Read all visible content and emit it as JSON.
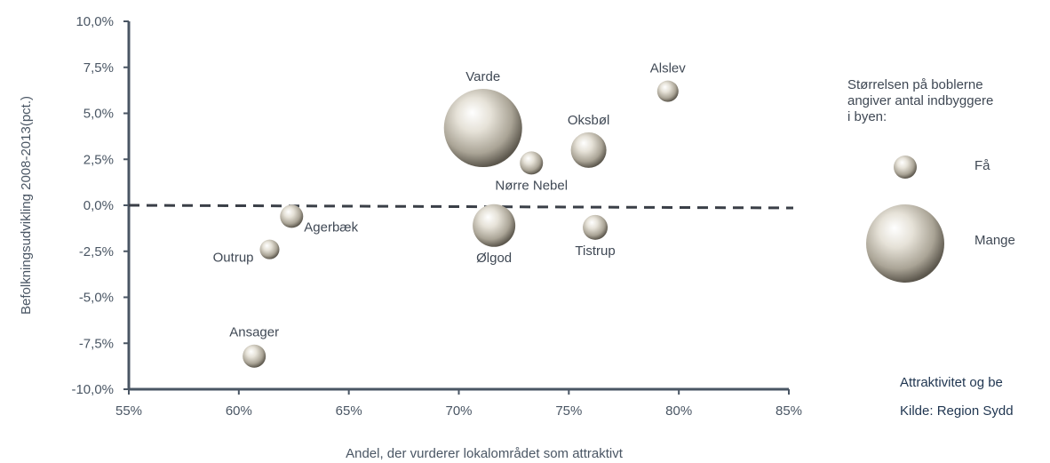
{
  "chart_data": {
    "type": "scatter",
    "xlabel": "Andel, der vurderer lokalområdet som attraktivt",
    "ylabel": "Befolkningsudvikling 2008-2013(pct.)",
    "xlim": [
      0.55,
      0.85
    ],
    "ylim": [
      -0.1,
      0.1
    ],
    "x_ticks": [
      {
        "value": 0.55,
        "label": "55%"
      },
      {
        "value": 0.6,
        "label": "60%"
      },
      {
        "value": 0.65,
        "label": "65%"
      },
      {
        "value": 0.7,
        "label": "70%"
      },
      {
        "value": 0.75,
        "label": "75%"
      },
      {
        "value": 0.8,
        "label": "80%"
      },
      {
        "value": 0.85,
        "label": "85%"
      }
    ],
    "y_ticks": [
      {
        "value": 0.1,
        "label": "10,0%"
      },
      {
        "value": 0.075,
        "label": "7,5%"
      },
      {
        "value": 0.05,
        "label": "5,0%"
      },
      {
        "value": 0.025,
        "label": "2,5%"
      },
      {
        "value": 0.0,
        "label": "0,0%"
      },
      {
        "value": -0.025,
        "label": "-2,5%"
      },
      {
        "value": -0.05,
        "label": "-5,0%"
      },
      {
        "value": -0.075,
        "label": "-7,5%"
      },
      {
        "value": -0.1,
        "label": "-10,0%"
      }
    ],
    "reference_line": {
      "y": 0.0,
      "style": "dashed"
    },
    "points": [
      {
        "name": "Varde",
        "x": 0.711,
        "y": 0.042,
        "size": 44,
        "label_pos": "top"
      },
      {
        "name": "Alslev",
        "x": 0.795,
        "y": 0.062,
        "size": 12,
        "label_pos": "top"
      },
      {
        "name": "Oksbøl",
        "x": 0.759,
        "y": 0.03,
        "size": 20,
        "label_pos": "top"
      },
      {
        "name": "Nørre Nebel",
        "x": 0.733,
        "y": 0.023,
        "size": 13,
        "label_pos": "bottom"
      },
      {
        "name": "Agerbæk",
        "x": 0.624,
        "y": -0.006,
        "size": 13,
        "label_pos": "right"
      },
      {
        "name": "Outrup",
        "x": 0.614,
        "y": -0.024,
        "size": 11,
        "label_pos": "left"
      },
      {
        "name": "Ølgod",
        "x": 0.716,
        "y": -0.011,
        "size": 24,
        "label_pos": "bottom"
      },
      {
        "name": "Tistrup",
        "x": 0.762,
        "y": -0.012,
        "size": 14,
        "label_pos": "bottom"
      },
      {
        "name": "Ansager",
        "x": 0.607,
        "y": -0.082,
        "size": 13,
        "label_pos": "top"
      }
    ]
  },
  "legend": {
    "text_lines": [
      "Størrelsen på boblerne",
      "angiver antal indbyggere",
      "i byen:"
    ],
    "items": [
      {
        "label": "Få",
        "size": 13
      },
      {
        "label": "Mange",
        "size": 44
      }
    ]
  },
  "footer": {
    "line1": "Attraktivitet og be",
    "line2": "Kilde: Region Sydd"
  },
  "colors": {
    "axis": "#4a5664",
    "dashed_line": "#3a3f47",
    "bubble_light": "#ffffff",
    "bubble_mid": "#c9c4b8",
    "bubble_dark": "#5c574d",
    "footer_text": "#1f3550"
  }
}
